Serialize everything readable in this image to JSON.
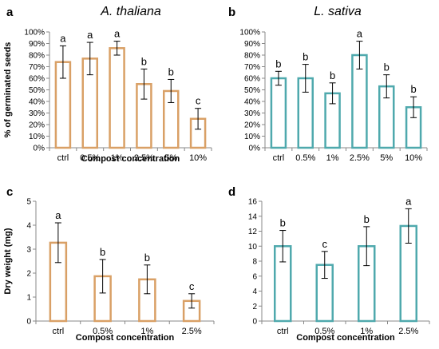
{
  "colors": {
    "orange": "#d9a066",
    "teal": "#4fa9ad",
    "error": "#000000"
  },
  "chart_data": [
    {
      "panel": "a",
      "type": "bar",
      "title": "A. thaliana",
      "xlabel": "Compost concentration",
      "ylabel": "% of germinated seeds",
      "ylim": [
        0,
        100
      ],
      "yticks": [
        "0%",
        "10%",
        "20%",
        "30%",
        "40%",
        "50%",
        "60%",
        "70%",
        "80%",
        "90%",
        "100%"
      ],
      "categories": [
        "ctrl",
        "0.5%",
        "1%",
        "2.5%",
        "5%",
        "10%"
      ],
      "values": [
        74,
        77,
        86,
        55,
        49,
        25
      ],
      "errors": [
        14,
        14,
        6,
        13,
        10,
        9
      ],
      "letters": [
        "a",
        "a",
        "a",
        "b",
        "b",
        "c"
      ],
      "color": "orange"
    },
    {
      "panel": "b",
      "type": "bar",
      "title": "L. sativa",
      "xlabel": "",
      "ylabel": "",
      "ylim": [
        0,
        100
      ],
      "yticks": [
        "0%",
        "10%",
        "20%",
        "30%",
        "40%",
        "50%",
        "60%",
        "70%",
        "80%",
        "90%",
        "100%"
      ],
      "categories": [
        "ctrl",
        "0.5%",
        "1%",
        "2.5%",
        "5%",
        "10%"
      ],
      "values": [
        60,
        60,
        47,
        80,
        53,
        35
      ],
      "errors": [
        6,
        12,
        9,
        12,
        10,
        9
      ],
      "letters": [
        "b",
        "b",
        "b",
        "a",
        "b",
        "b"
      ],
      "color": "teal"
    },
    {
      "panel": "c",
      "type": "bar",
      "title": "",
      "xlabel": "Compost concentration",
      "ylabel": "Dry weight (mg)",
      "ylim": [
        0,
        5
      ],
      "yticks": [
        "0",
        "1",
        "2",
        "3",
        "4",
        "5"
      ],
      "categories": [
        "ctrl",
        "0.5%",
        "1%",
        "2.5%"
      ],
      "values": [
        3.27,
        1.87,
        1.74,
        0.84
      ],
      "errors": [
        0.83,
        0.7,
        0.6,
        0.3
      ],
      "letters": [
        "a",
        "b",
        "b",
        "c"
      ],
      "color": "orange"
    },
    {
      "panel": "d",
      "type": "bar",
      "title": "",
      "xlabel": "Compost concentration",
      "ylabel": "",
      "ylim": [
        0,
        16
      ],
      "yticks": [
        "0",
        "2",
        "4",
        "6",
        "8",
        "10",
        "12",
        "14",
        "16"
      ],
      "categories": [
        "ctrl",
        "0.5%",
        "1%",
        "2.5%"
      ],
      "values": [
        10.0,
        7.5,
        10.0,
        12.7
      ],
      "errors": [
        2.1,
        1.8,
        2.6,
        2.3
      ],
      "letters": [
        "b",
        "c",
        "b",
        "a"
      ],
      "color": "teal"
    }
  ]
}
